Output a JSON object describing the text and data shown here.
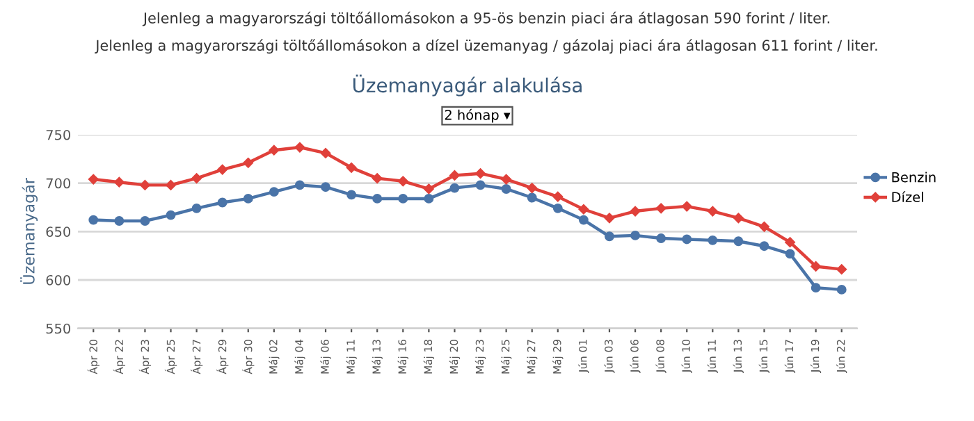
{
  "chart_data": {
    "type": "line",
    "title": "Üzemanyagár alakulása",
    "ylabel": "Üzemanyagár",
    "annotations": [
      "Jelenleg a magyarországi töltőállomásokon a 95-ös benzin piaci ára átlagosan 590 forint / liter.",
      "Jelenleg a magyarországi töltőállomásokon a dízel üzemanyag / gázolaj piaci ára átlagosan 611 forint / liter.",
      "2 hónap ▾"
    ],
    "categories": [
      "Ápr 20",
      "Ápr 22",
      "Ápr 23",
      "Ápr 25",
      "Ápr 27",
      "Ápr 29",
      "Ápr 30",
      "Máj 02",
      "Máj 04",
      "Máj 06",
      "Máj 11",
      "Máj 13",
      "Máj 16",
      "Máj 18",
      "Máj 20",
      "Máj 23",
      "Máj 25",
      "Máj 27",
      "Máj 29",
      "Jún 01",
      "Jún 03",
      "Jún 06",
      "Jún 08",
      "Jún 10",
      "Jún 11",
      "Jún 13",
      "Jún 15",
      "Jún 17",
      "Jún 19",
      "Jún 22"
    ],
    "series": [
      {
        "name": "Benzin",
        "color": "#4a74a8",
        "marker": "circle",
        "values": [
          662,
          661,
          661,
          667,
          674,
          680,
          684,
          691,
          698,
          696,
          688,
          684,
          684,
          684,
          695,
          698,
          694,
          685,
          674,
          662,
          645,
          646,
          643,
          642,
          641,
          640,
          635,
          627,
          592,
          590
        ]
      },
      {
        "name": "Dízel",
        "color": "#e0403a",
        "marker": "diamond",
        "values": [
          704,
          701,
          698,
          698,
          705,
          714,
          721,
          734,
          737,
          731,
          716,
          705,
          702,
          694,
          708,
          710,
          704,
          695,
          686,
          673,
          664,
          671,
          674,
          676,
          671,
          664,
          655,
          639,
          614,
          611
        ]
      }
    ],
    "ylim": [
      550,
      750
    ],
    "yticks": [
      550,
      600,
      650,
      700,
      750
    ],
    "grid": "y",
    "legend": "right",
    "line_style": "solid"
  }
}
